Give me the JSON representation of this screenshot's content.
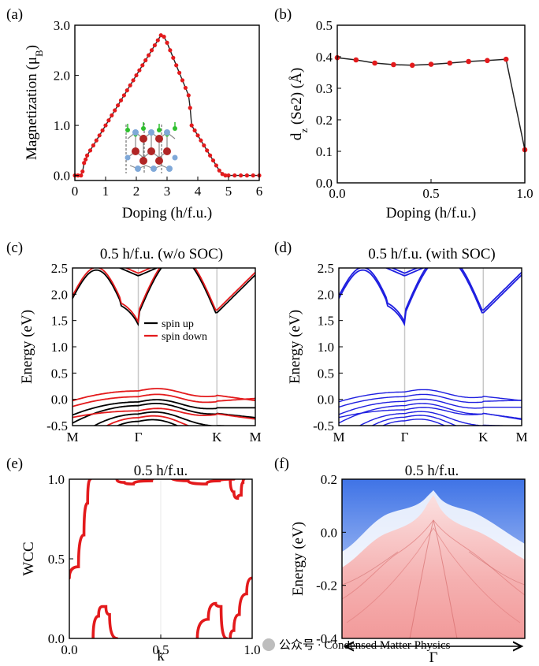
{
  "watermark": "公众号 · Condensed Matter Physics",
  "chart_data": [
    {
      "panel": "(a)",
      "type": "line",
      "xlabel": "Doping (h/f.u.)",
      "ylabel": "Magnetization (μB)",
      "xlim": [
        0,
        6
      ],
      "ylim": [
        -0.1,
        3.0
      ],
      "xticks": [
        "0",
        "1",
        "2",
        "3",
        "4",
        "5",
        "6"
      ],
      "yticks": [
        "0.0",
        "1.0",
        "2.0",
        "3.0"
      ],
      "line_color": "#222222",
      "marker_color": "#e31a1c",
      "series": [
        {
          "x": [
            0,
            0.1,
            0.2,
            0.25,
            0.3,
            0.35,
            0.4,
            0.5,
            0.6,
            0.7,
            0.8,
            0.9,
            1.0,
            1.1,
            1.2,
            1.3,
            1.4,
            1.5,
            1.6,
            1.7,
            1.8,
            1.9,
            2.0,
            2.1,
            2.2,
            2.3,
            2.4,
            2.5,
            2.6,
            2.7,
            2.8,
            2.9,
            3.0,
            3.1,
            3.2,
            3.3,
            3.4,
            3.5,
            3.6,
            3.7,
            3.75,
            3.8,
            3.9,
            4.0,
            4.1,
            4.2,
            4.3,
            4.4,
            4.5,
            4.6,
            4.7,
            4.8,
            4.9,
            5.0,
            5.2,
            5.4,
            5.6,
            5.8,
            6.0
          ],
          "y": [
            0.0,
            0.0,
            0.0,
            0.08,
            0.25,
            0.32,
            0.4,
            0.5,
            0.6,
            0.7,
            0.8,
            0.9,
            1.0,
            1.1,
            1.2,
            1.3,
            1.4,
            1.5,
            1.6,
            1.7,
            1.8,
            1.9,
            2.0,
            2.1,
            2.2,
            2.3,
            2.4,
            2.5,
            2.6,
            2.7,
            2.8,
            2.77,
            2.65,
            2.5,
            2.35,
            2.2,
            2.05,
            1.9,
            1.75,
            1.6,
            1.35,
            1.0,
            0.9,
            0.8,
            0.7,
            0.6,
            0.5,
            0.4,
            0.3,
            0.2,
            0.1,
            0.03,
            0.0,
            0.0,
            0.0,
            0.0,
            0.0,
            0.0,
            0.0
          ]
        }
      ]
    },
    {
      "panel": "(b)",
      "type": "line",
      "xlabel": "Doping (h/f.u.)",
      "ylabel": "dz (Se2) (Å)",
      "xlim": [
        0,
        1.0
      ],
      "ylim": [
        0.0,
        0.5
      ],
      "xticks": [
        "0.0",
        "0.5",
        "1.0"
      ],
      "yticks": [
        "0.0",
        "0.1",
        "0.2",
        "0.3",
        "0.4",
        "0.5"
      ],
      "series": [
        {
          "x": [
            0.0,
            0.1,
            0.2,
            0.3,
            0.4,
            0.5,
            0.6,
            0.7,
            0.8,
            0.9,
            1.0
          ],
          "y": [
            0.397,
            0.39,
            0.38,
            0.375,
            0.373,
            0.376,
            0.38,
            0.385,
            0.388,
            0.392,
            0.105
          ]
        }
      ]
    },
    {
      "panel": "(c)",
      "type": "line",
      "title": "0.5 h/f.u.  (w/o SOC)",
      "ylabel": "Energy (eV)",
      "ylim": [
        -0.5,
        2.5
      ],
      "xticks": [
        "M",
        "Γ",
        "K",
        "M"
      ],
      "yticks": [
        "-0.5",
        "0.0",
        "0.5",
        "1.0",
        "1.5",
        "2.0",
        "2.5"
      ],
      "legend": [
        "spin up",
        "spin down"
      ],
      "colors": [
        "#000000",
        "#e31a1c"
      ]
    },
    {
      "panel": "(d)",
      "type": "line",
      "title": "0.5 h/f.u.  (with SOC)",
      "ylabel": "Energy (eV)",
      "ylim": [
        -0.5,
        2.5
      ],
      "xticks": [
        "M",
        "Γ",
        "K",
        "M"
      ],
      "yticks": [
        "-0.5",
        "0.0",
        "0.5",
        "1.0",
        "1.5",
        "2.0",
        "2.5"
      ],
      "colors": [
        "#1f1fe0"
      ]
    },
    {
      "panel": "(e)",
      "type": "scatter",
      "title": "0.5 h/f.u.",
      "xlabel": "k",
      "ylabel": "WCC",
      "xlim": [
        0,
        1.0
      ],
      "ylim": [
        0,
        1.0
      ],
      "xticks": [
        "0.0",
        "0.5",
        "1.0"
      ],
      "yticks": [
        "0.0",
        "0.5",
        "1.0"
      ],
      "colors": [
        "#e31a1c"
      ]
    },
    {
      "panel": "(f)",
      "type": "heatmap",
      "title": "0.5 h/f.u.",
      "ylabel": "Energy (eV)",
      "ylim": [
        -0.4,
        0.2
      ],
      "xticks": [
        "Γ"
      ],
      "yticks": [
        "-0.4",
        "-0.2",
        "0.0",
        "0.2"
      ],
      "colors": [
        "#3f73e6",
        "#ffffff",
        "#f4a8a8"
      ]
    }
  ]
}
